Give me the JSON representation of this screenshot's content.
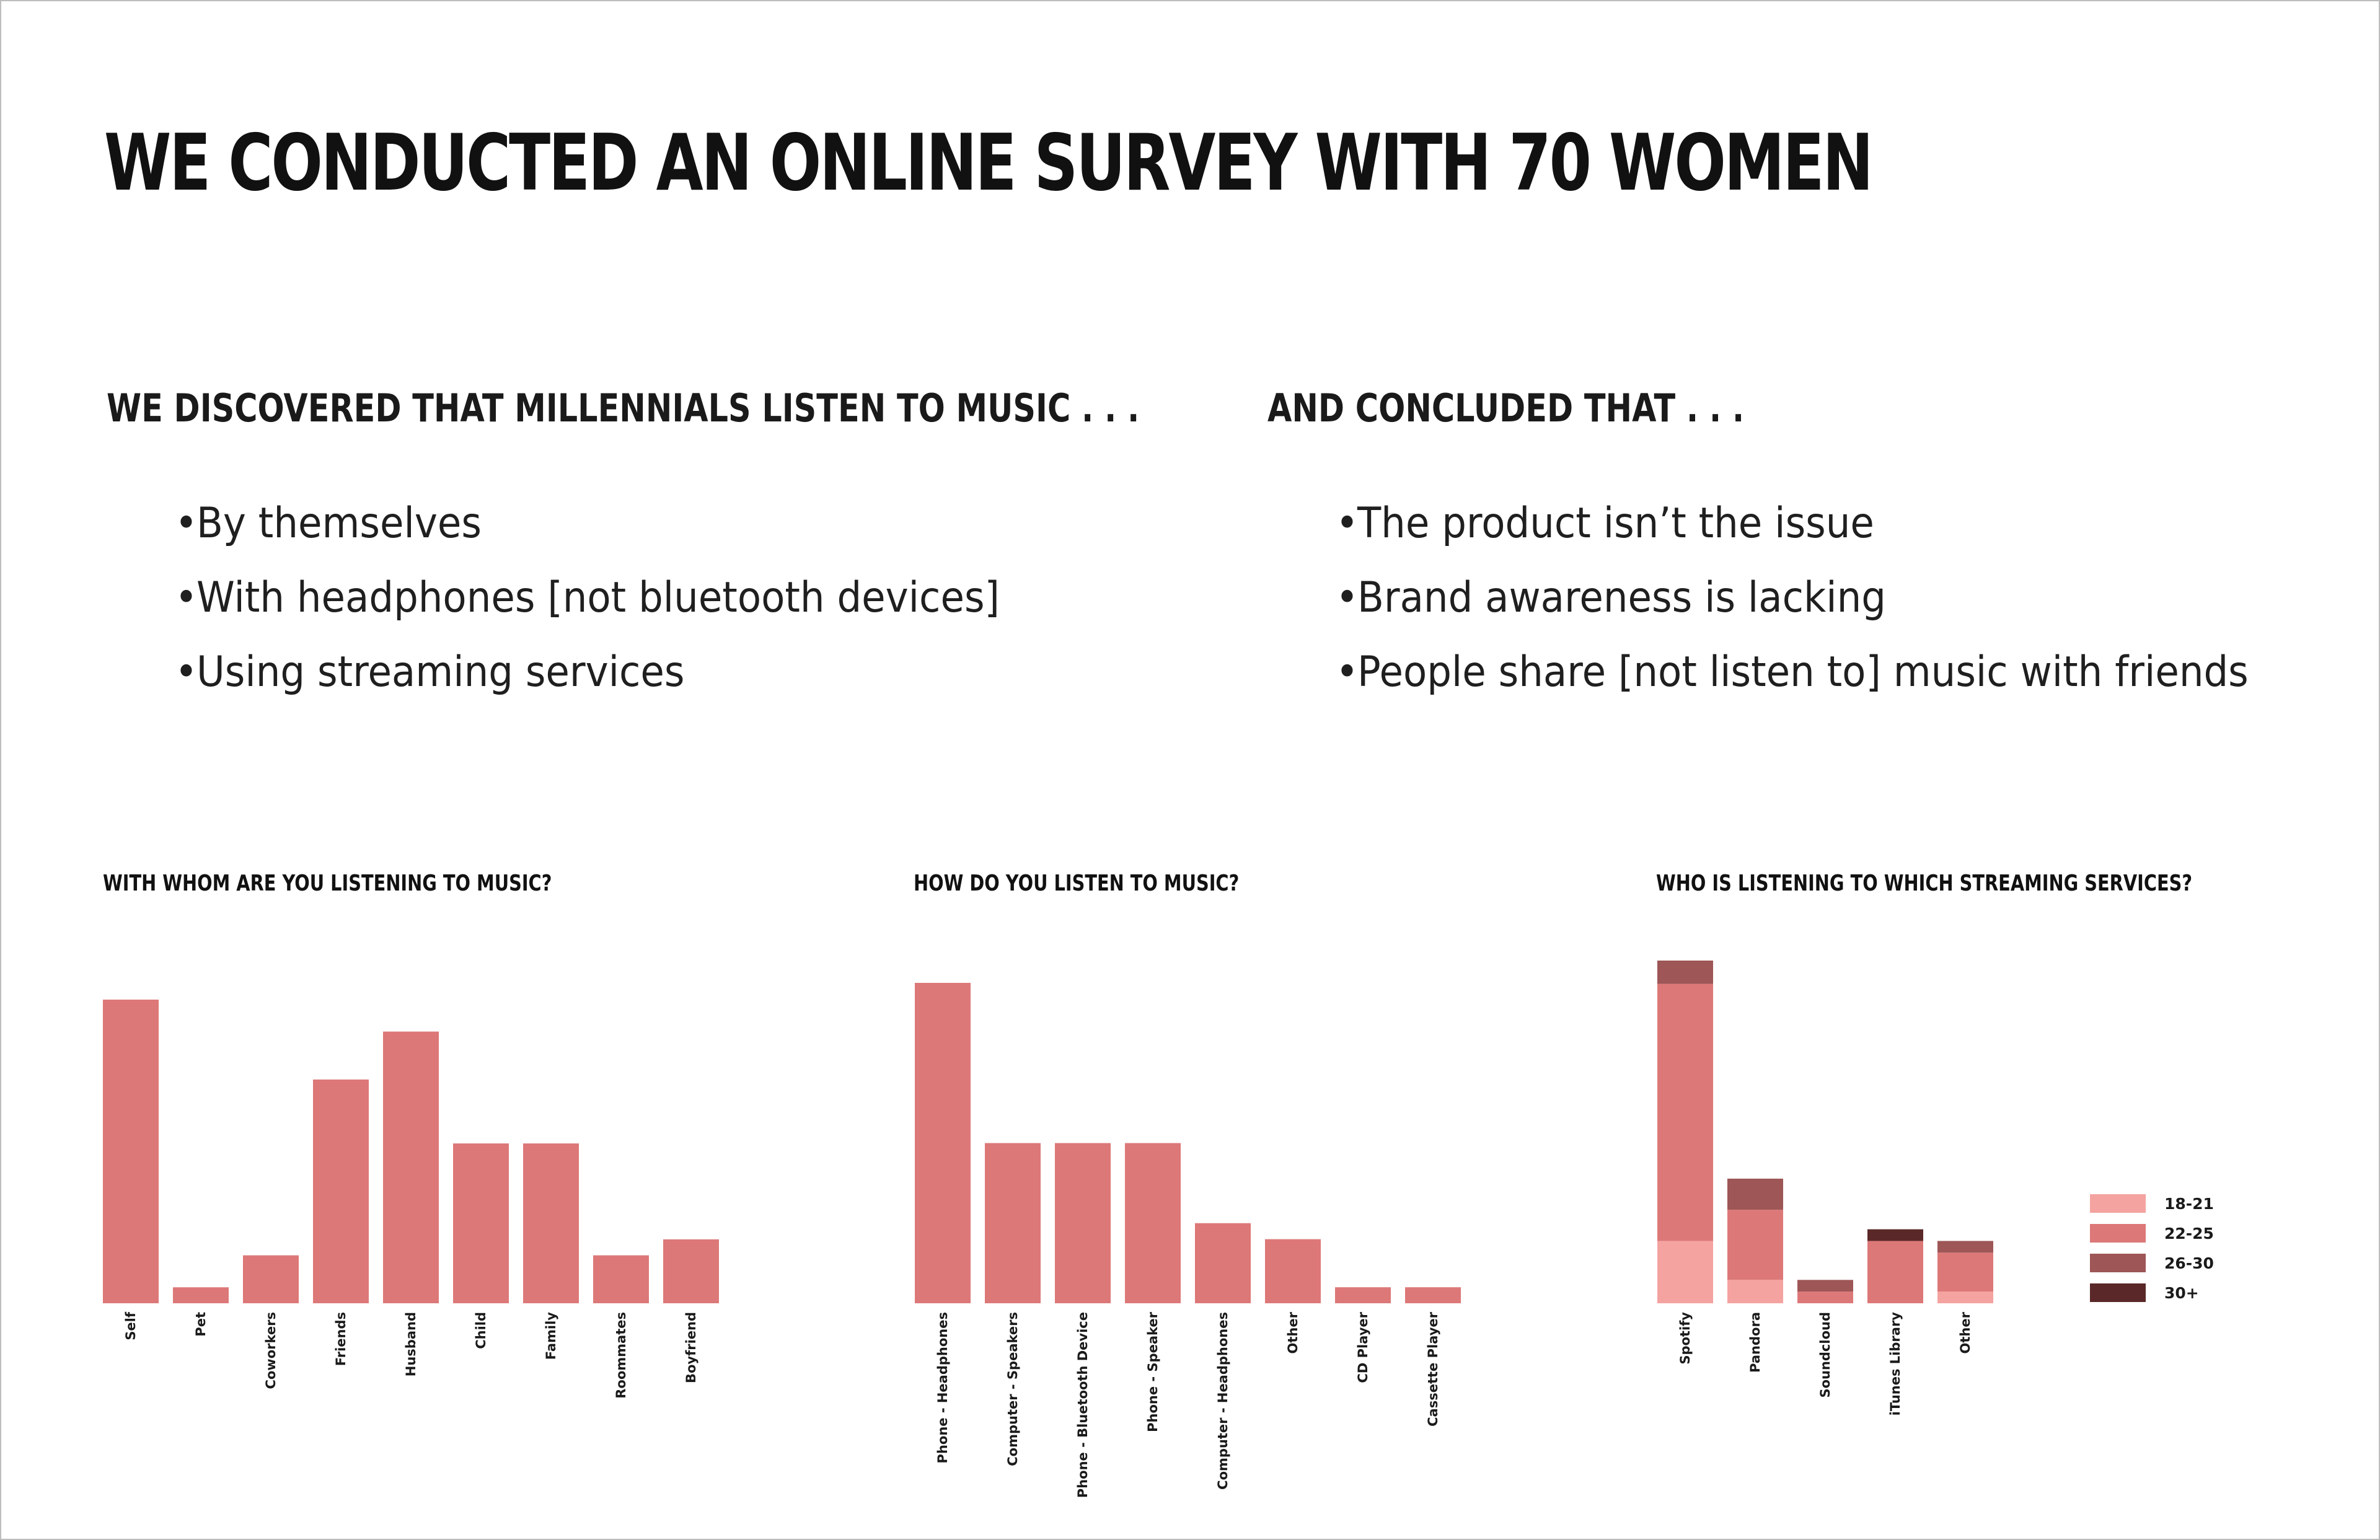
{
  "title": "WE CONDUCTED AN ONLINE SURVEY WITH 70 WOMEN",
  "left_section": {
    "heading": "WE DISCOVERED THAT MILLENNIALS LISTEN TO MUSIC . . .",
    "bullets": [
      "By themselves",
      "With headphones [not bluetooth devices]",
      "Using streaming services"
    ]
  },
  "right_section": {
    "heading": "AND CONCLUDED THAT . . .",
    "bullets": [
      "The product isn’t the issue",
      "Brand awareness is lacking",
      "People share [not listen to] music with friends"
    ]
  },
  "bullet_glyph": "•",
  "colors": {
    "bar": "#dd7878",
    "age_18_21": "#f4a3a0",
    "age_22_25": "#dd7878",
    "age_26_30": "#9e5656",
    "age_30_plus": "#5a2828"
  },
  "chart_data": [
    {
      "type": "bar",
      "title": "WITH WHOM ARE YOU LISTENING TO MUSIC?",
      "categories": [
        "Self",
        "Pet",
        "Coworkers",
        "Friends",
        "Husband",
        "Child",
        "Family",
        "Roommates",
        "Boyfriend"
      ],
      "values": [
        19,
        1,
        3,
        14,
        17,
        10,
        10,
        3,
        4
      ],
      "ylim": [
        0,
        19
      ],
      "grid": false
    },
    {
      "type": "bar",
      "title": "HOW DO YOU LISTEN TO MUSIC?",
      "categories": [
        "Phone - Headphones",
        "Computer - Speakers",
        "Phone - Bluetooth Device",
        "Phone - Speaker",
        "Computer - Headphones",
        "Other",
        "CD Player",
        "Cassette Player"
      ],
      "values": [
        20,
        10,
        10,
        10,
        5,
        4,
        1,
        1
      ],
      "ylim": [
        0,
        20
      ],
      "grid": false
    },
    {
      "type": "bar",
      "stacked": true,
      "title": "WHO IS LISTENING TO WHICH STREAMING SERVICES?",
      "categories": [
        "Spotify",
        "Pandora",
        "Soundcloud",
        "iTunes Library",
        "Other"
      ],
      "series": [
        {
          "name": "18-21",
          "values": [
            8,
            3,
            0,
            0,
            1.5
          ]
        },
        {
          "name": "22-25",
          "values": [
            33,
            9,
            1.5,
            8,
            5
          ]
        },
        {
          "name": "26-30",
          "values": [
            3,
            4,
            1.5,
            0,
            1.5
          ]
        },
        {
          "name": "30+",
          "values": [
            0,
            0,
            0,
            1.5,
            0
          ]
        }
      ],
      "ylim": [
        0,
        44
      ],
      "legend": "right",
      "grid": false
    }
  ]
}
